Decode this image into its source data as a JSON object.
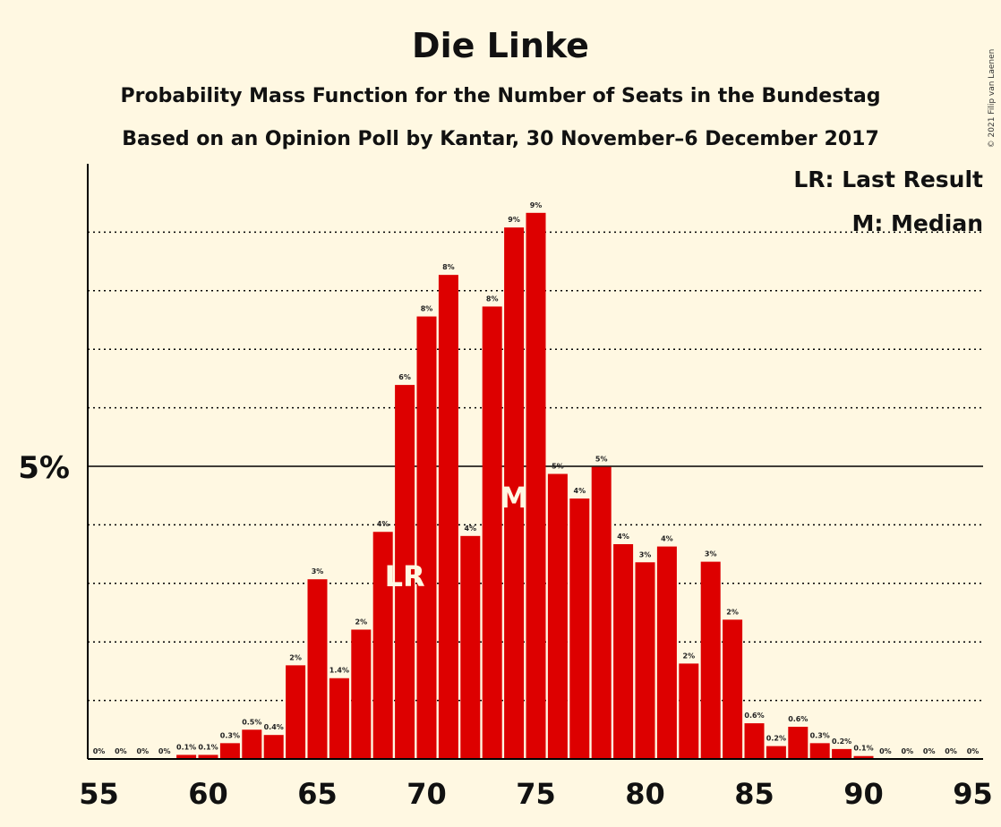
{
  "chart_data": {
    "type": "bar",
    "title": "Die Linke",
    "subtitle1": "Probability Mass Function for the Number of Seats in the Bundestag",
    "subtitle2": "Based on an Opinion Poll by Kantar, 30 November–6 December 2017",
    "copyright": "© 2021 Filip van Laenen",
    "legend": [
      "LR: Last Result",
      "M: Median"
    ],
    "bar_color": "#DD0000",
    "x": [
      55,
      56,
      57,
      58,
      59,
      60,
      61,
      62,
      63,
      64,
      65,
      66,
      67,
      68,
      69,
      70,
      71,
      72,
      73,
      74,
      75,
      76,
      77,
      78,
      79,
      80,
      81,
      82,
      83,
      84,
      85,
      86,
      87,
      88,
      89,
      90,
      91,
      92,
      93,
      94,
      95
    ],
    "values": [
      0,
      0,
      0,
      0,
      0.07,
      0.07,
      0.27,
      0.5,
      0.41,
      1.6,
      3.07,
      1.38,
      2.21,
      3.88,
      6.39,
      7.56,
      8.27,
      3.81,
      7.73,
      9.08,
      9.33,
      4.87,
      4.45,
      4.99,
      3.67,
      3.36,
      3.63,
      1.63,
      3.37,
      2.38,
      0.61,
      0.22,
      0.55,
      0.27,
      0.17,
      0.05,
      0,
      0,
      0,
      0,
      0
    ],
    "labels": [
      "0%",
      "0%",
      "0%",
      "0%",
      "0.1%",
      "0.1%",
      "0.3%",
      "0.5%",
      "0.4%",
      "2%",
      "3%",
      "1.4%",
      "2%",
      "4%",
      "6%",
      "8%",
      "8%",
      "4%",
      "8%",
      "9%",
      "9%",
      "5%",
      "4%",
      "5%",
      "4%",
      "3%",
      "4%",
      "2%",
      "3%",
      "2%",
      "0.6%",
      "0.2%",
      "0.6%",
      "0.3%",
      "0.2%",
      "0.1%",
      "0%",
      "0%",
      "0%",
      "0%",
      "0%"
    ],
    "x_ticks": [
      55,
      60,
      65,
      70,
      75,
      80,
      85,
      90,
      95
    ],
    "y_tick_label": "5%",
    "y_tick_value": 5,
    "gridlines": [
      1,
      2,
      3,
      4,
      6,
      7,
      8,
      9
    ],
    "ylim": [
      0,
      10.2
    ],
    "last_result": {
      "x": 69,
      "label": "LR"
    },
    "median": {
      "x": 74,
      "label": "M"
    }
  }
}
